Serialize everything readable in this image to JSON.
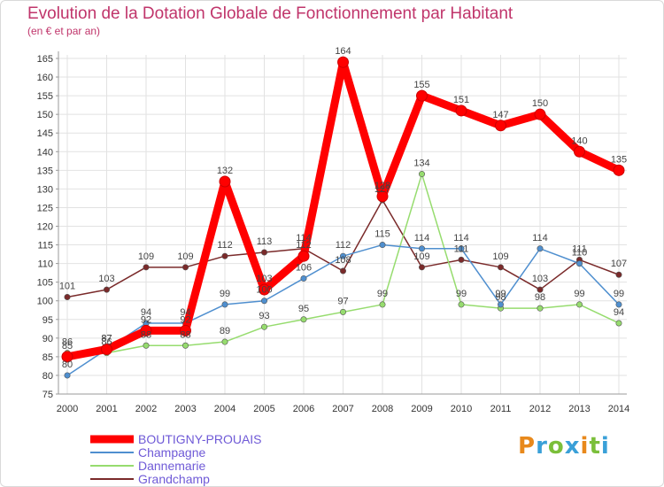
{
  "chart_data": {
    "type": "line",
    "title": "Evolution de la Dotation Globale de Fonctionnement par Habitant",
    "subtitle": "(en € et par an)",
    "xlabel": "",
    "ylabel": "",
    "categories": [
      "2000",
      "2001",
      "2002",
      "2003",
      "2004",
      "2005",
      "2006",
      "2007",
      "2008",
      "2009",
      "2010",
      "2011",
      "2012",
      "2013",
      "2014"
    ],
    "ylim": [
      75,
      165
    ],
    "ytick_step": 5,
    "grid": true,
    "legend_position": "bottom-left",
    "series": [
      {
        "name": "BOUTIGNY-PROUAIS",
        "color": "#ff0000",
        "values": [
          85,
          87,
          92,
          92,
          132,
          103,
          112,
          164,
          128,
          155,
          151,
          147,
          150,
          140,
          135
        ]
      },
      {
        "name": "Champagne",
        "color": "#4f8fcf",
        "values": [
          80,
          87,
          94,
          94,
          99,
          100,
          106,
          112,
          115,
          114,
          114,
          99,
          114,
          110,
          99
        ]
      },
      {
        "name": "Dannemarie",
        "color": "#96dc6e",
        "values": [
          86,
          86,
          88,
          88,
          89,
          93,
          95,
          97,
          99,
          134,
          99,
          98,
          98,
          99,
          94
        ]
      },
      {
        "name": "Grandchamp",
        "color": "#7a2a2a",
        "values": [
          101,
          103,
          109,
          109,
          112,
          113,
          114,
          108,
          127,
          109,
          111,
          109,
          103,
          111,
          107
        ]
      }
    ]
  },
  "logo": {
    "letters": [
      "P",
      "r",
      "o",
      "x",
      "i",
      "t",
      "i"
    ],
    "colors": [
      "#e8891c",
      "#3aa0d8",
      "#7bbf3a",
      "#3aa0d8",
      "#e8891c",
      "#7bbf3a",
      "#3aa0d8"
    ]
  }
}
